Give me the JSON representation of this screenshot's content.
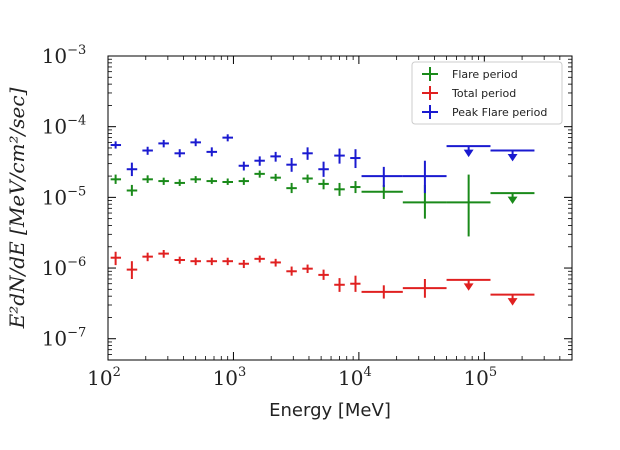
{
  "chart_data": {
    "type": "scatter",
    "title": "",
    "xlabel": "Energy [MeV]",
    "ylabel": "E²dN/dE [MeV/cm²/sec]",
    "xscale": "log",
    "yscale": "log",
    "xlim": [
      100,
      500000
    ],
    "ylim": [
      5e-08,
      0.001
    ],
    "x_ticks": [
      {
        "value": 100,
        "base": "10",
        "exp": "2"
      },
      {
        "value": 1000,
        "base": "10",
        "exp": "3"
      },
      {
        "value": 10000,
        "base": "10",
        "exp": "4"
      },
      {
        "value": 100000,
        "base": "10",
        "exp": "5"
      }
    ],
    "y_ticks": [
      {
        "value": 1e-07,
        "base": "10",
        "exp": "−7"
      },
      {
        "value": 1e-06,
        "base": "10",
        "exp": "−6"
      },
      {
        "value": 1e-05,
        "base": "10",
        "exp": "−5"
      },
      {
        "value": 0.0001,
        "base": "10",
        "exp": "−4"
      },
      {
        "value": 0.001,
        "base": "10",
        "exp": "−3"
      }
    ],
    "grid": false,
    "legend_position": "top-right",
    "series": [
      {
        "name": "Flare period",
        "color": "#1a8a1a",
        "points": [
          {
            "x": 115,
            "y": 1.8e-05,
            "xlo": 105,
            "xhi": 127,
            "ylo": 1.55e-05,
            "yhi": 2.1e-05
          },
          {
            "x": 155,
            "y": 1.25e-05,
            "xlo": 141,
            "xhi": 171,
            "ylo": 1.05e-05,
            "yhi": 1.5e-05
          },
          {
            "x": 207,
            "y": 1.8e-05,
            "xlo": 188,
            "xhi": 228,
            "ylo": 1.6e-05,
            "yhi": 2.05e-05
          },
          {
            "x": 278,
            "y": 1.7e-05,
            "xlo": 252,
            "xhi": 306,
            "ylo": 1.5e-05,
            "yhi": 1.9e-05
          },
          {
            "x": 373,
            "y": 1.6e-05,
            "xlo": 339,
            "xhi": 411,
            "ylo": 1.45e-05,
            "yhi": 1.8e-05
          },
          {
            "x": 500,
            "y": 1.8e-05,
            "xlo": 454,
            "xhi": 551,
            "ylo": 1.6e-05,
            "yhi": 2e-05
          },
          {
            "x": 672,
            "y": 1.7e-05,
            "xlo": 610,
            "xhi": 740,
            "ylo": 1.55e-05,
            "yhi": 1.9e-05
          },
          {
            "x": 900,
            "y": 1.65e-05,
            "xlo": 817,
            "xhi": 992,
            "ylo": 1.5e-05,
            "yhi": 1.85e-05
          },
          {
            "x": 1210,
            "y": 1.7e-05,
            "xlo": 1100,
            "xhi": 1330,
            "ylo": 1.5e-05,
            "yhi": 1.9e-05
          },
          {
            "x": 1620,
            "y": 2.15e-05,
            "xlo": 1470,
            "xhi": 1780,
            "ylo": 1.9e-05,
            "yhi": 2.4e-05
          },
          {
            "x": 2170,
            "y": 1.9e-05,
            "xlo": 1970,
            "xhi": 2390,
            "ylo": 1.7e-05,
            "yhi": 2.15e-05
          },
          {
            "x": 2910,
            "y": 1.35e-05,
            "xlo": 2640,
            "xhi": 3200,
            "ylo": 1.15e-05,
            "yhi": 1.6e-05
          },
          {
            "x": 3900,
            "y": 1.85e-05,
            "xlo": 3540,
            "xhi": 4290,
            "ylo": 1.6e-05,
            "yhi": 2.1e-05
          },
          {
            "x": 5230,
            "y": 1.55e-05,
            "xlo": 4750,
            "xhi": 5760,
            "ylo": 1.3e-05,
            "yhi": 1.8e-05
          },
          {
            "x": 7010,
            "y": 1.3e-05,
            "xlo": 6360,
            "xhi": 7720,
            "ylo": 1.05e-05,
            "yhi": 1.6e-05
          },
          {
            "x": 9400,
            "y": 1.4e-05,
            "xlo": 8530,
            "xhi": 10300,
            "ylo": 1.15e-05,
            "yhi": 1.7e-05
          },
          {
            "x": 15800,
            "y": 1.2e-05,
            "xlo": 10500,
            "xhi": 22400,
            "ylo": 9.5e-06,
            "yhi": 1.5e-05
          },
          {
            "x": 33600,
            "y": 8.5e-06,
            "xlo": 22400,
            "xhi": 50000,
            "ylo": 5e-06,
            "yhi": 1.5e-05
          },
          {
            "x": 75000,
            "y": 8.5e-06,
            "xlo": 50000,
            "xhi": 112000,
            "ylo": 2.8e-06,
            "yhi": 2.1e-05
          },
          {
            "x": 168000,
            "y": 1.15e-05,
            "xlo": 112000,
            "xhi": 251000,
            "upper_limit": true
          }
        ]
      },
      {
        "name": "Total period",
        "color": "#e02020",
        "points": [
          {
            "x": 115,
            "y": 1.4e-06,
            "xlo": 105,
            "xhi": 127,
            "ylo": 1.1e-06,
            "yhi": 1.7e-06
          },
          {
            "x": 155,
            "y": 9.5e-07,
            "xlo": 141,
            "xhi": 171,
            "ylo": 7e-07,
            "yhi": 1.25e-06
          },
          {
            "x": 207,
            "y": 1.45e-06,
            "xlo": 188,
            "xhi": 228,
            "ylo": 1.25e-06,
            "yhi": 1.65e-06
          },
          {
            "x": 278,
            "y": 1.6e-06,
            "xlo": 252,
            "xhi": 306,
            "ylo": 1.4e-06,
            "yhi": 1.8e-06
          },
          {
            "x": 373,
            "y": 1.3e-06,
            "xlo": 339,
            "xhi": 411,
            "ylo": 1.15e-06,
            "yhi": 1.45e-06
          },
          {
            "x": 500,
            "y": 1.25e-06,
            "xlo": 454,
            "xhi": 551,
            "ylo": 1.1e-06,
            "yhi": 1.4e-06
          },
          {
            "x": 672,
            "y": 1.25e-06,
            "xlo": 610,
            "xhi": 740,
            "ylo": 1.1e-06,
            "yhi": 1.4e-06
          },
          {
            "x": 900,
            "y": 1.25e-06,
            "xlo": 817,
            "xhi": 992,
            "ylo": 1.1e-06,
            "yhi": 1.4e-06
          },
          {
            "x": 1210,
            "y": 1.15e-06,
            "xlo": 1100,
            "xhi": 1330,
            "ylo": 1e-06,
            "yhi": 1.3e-06
          },
          {
            "x": 1620,
            "y": 1.35e-06,
            "xlo": 1470,
            "xhi": 1780,
            "ylo": 1.2e-06,
            "yhi": 1.5e-06
          },
          {
            "x": 2170,
            "y": 1.2e-06,
            "xlo": 1970,
            "xhi": 2390,
            "ylo": 1.05e-06,
            "yhi": 1.35e-06
          },
          {
            "x": 2910,
            "y": 9e-07,
            "xlo": 2640,
            "xhi": 3200,
            "ylo": 7.8e-07,
            "yhi": 1.05e-06
          },
          {
            "x": 3900,
            "y": 9.8e-07,
            "xlo": 3540,
            "xhi": 4290,
            "ylo": 8.5e-07,
            "yhi": 1.12e-06
          },
          {
            "x": 5230,
            "y": 8e-07,
            "xlo": 4750,
            "xhi": 5760,
            "ylo": 6.8e-07,
            "yhi": 9.5e-07
          },
          {
            "x": 7010,
            "y": 5.8e-07,
            "xlo": 6360,
            "xhi": 7720,
            "ylo": 4.6e-07,
            "yhi": 7.2e-07
          },
          {
            "x": 9400,
            "y": 6e-07,
            "xlo": 8530,
            "xhi": 10300,
            "ylo": 4.6e-07,
            "yhi": 7.8e-07
          },
          {
            "x": 15800,
            "y": 4.6e-07,
            "xlo": 10500,
            "xhi": 22400,
            "ylo": 3.7e-07,
            "yhi": 5.7e-07
          },
          {
            "x": 33600,
            "y": 5.2e-07,
            "xlo": 22400,
            "xhi": 50000,
            "ylo": 3.8e-07,
            "yhi": 7e-07
          },
          {
            "x": 75000,
            "y": 6.8e-07,
            "xlo": 50000,
            "xhi": 112000,
            "upper_limit": true
          },
          {
            "x": 168000,
            "y": 4.2e-07,
            "xlo": 112000,
            "xhi": 251000,
            "upper_limit": true
          }
        ]
      },
      {
        "name": "Peak Flare period",
        "color": "#1a1ad0",
        "points": [
          {
            "x": 115,
            "y": 5.5e-05,
            "xlo": 105,
            "xhi": 127,
            "ylo": 4.9e-05,
            "yhi": 6.2e-05
          },
          {
            "x": 155,
            "y": 2.5e-05,
            "xlo": 141,
            "xhi": 171,
            "ylo": 2e-05,
            "yhi": 3.1e-05
          },
          {
            "x": 207,
            "y": 4.6e-05,
            "xlo": 188,
            "xhi": 228,
            "ylo": 4e-05,
            "yhi": 5.2e-05
          },
          {
            "x": 278,
            "y": 5.8e-05,
            "xlo": 252,
            "xhi": 306,
            "ylo": 5.1e-05,
            "yhi": 6.5e-05
          },
          {
            "x": 373,
            "y": 4.2e-05,
            "xlo": 339,
            "xhi": 411,
            "ylo": 3.7e-05,
            "yhi": 4.8e-05
          },
          {
            "x": 500,
            "y": 6e-05,
            "xlo": 454,
            "xhi": 551,
            "ylo": 5.3e-05,
            "yhi": 6.8e-05
          },
          {
            "x": 672,
            "y": 4.4e-05,
            "xlo": 610,
            "xhi": 740,
            "ylo": 3.8e-05,
            "yhi": 5.1e-05
          },
          {
            "x": 900,
            "y": 7e-05,
            "xlo": 817,
            "xhi": 992,
            "ylo": 6.2e-05,
            "yhi": 7.8e-05
          },
          {
            "x": 1210,
            "y": 2.8e-05,
            "xlo": 1100,
            "xhi": 1330,
            "ylo": 2.4e-05,
            "yhi": 3.2e-05
          },
          {
            "x": 1620,
            "y": 3.3e-05,
            "xlo": 1470,
            "xhi": 1780,
            "ylo": 2.8e-05,
            "yhi": 3.8e-05
          },
          {
            "x": 2170,
            "y": 3.8e-05,
            "xlo": 1970,
            "xhi": 2390,
            "ylo": 3.2e-05,
            "yhi": 4.4e-05
          },
          {
            "x": 2910,
            "y": 2.9e-05,
            "xlo": 2640,
            "xhi": 3200,
            "ylo": 2.3e-05,
            "yhi": 3.6e-05
          },
          {
            "x": 3900,
            "y": 4.2e-05,
            "xlo": 3540,
            "xhi": 4290,
            "ylo": 3.4e-05,
            "yhi": 5.1e-05
          },
          {
            "x": 5230,
            "y": 2.5e-05,
            "xlo": 4750,
            "xhi": 5760,
            "ylo": 1.95e-05,
            "yhi": 3.2e-05
          },
          {
            "x": 7010,
            "y": 3.9e-05,
            "xlo": 6360,
            "xhi": 7720,
            "ylo": 3e-05,
            "yhi": 4.9e-05
          },
          {
            "x": 9400,
            "y": 3.6e-05,
            "xlo": 8530,
            "xhi": 10300,
            "ylo": 2.6e-05,
            "yhi": 4.8e-05
          },
          {
            "x": 15800,
            "y": 2e-05,
            "xlo": 10500,
            "xhi": 22400,
            "ylo": 1.4e-05,
            "yhi": 2.7e-05
          },
          {
            "x": 33600,
            "y": 2e-05,
            "xlo": 22400,
            "xhi": 50000,
            "ylo": 1.15e-05,
            "yhi": 3.3e-05
          },
          {
            "x": 75000,
            "y": 5.3e-05,
            "xlo": 50000,
            "xhi": 112000,
            "upper_limit": true
          },
          {
            "x": 168000,
            "y": 4.6e-05,
            "xlo": 112000,
            "xhi": 251000,
            "upper_limit": true
          }
        ]
      }
    ]
  }
}
